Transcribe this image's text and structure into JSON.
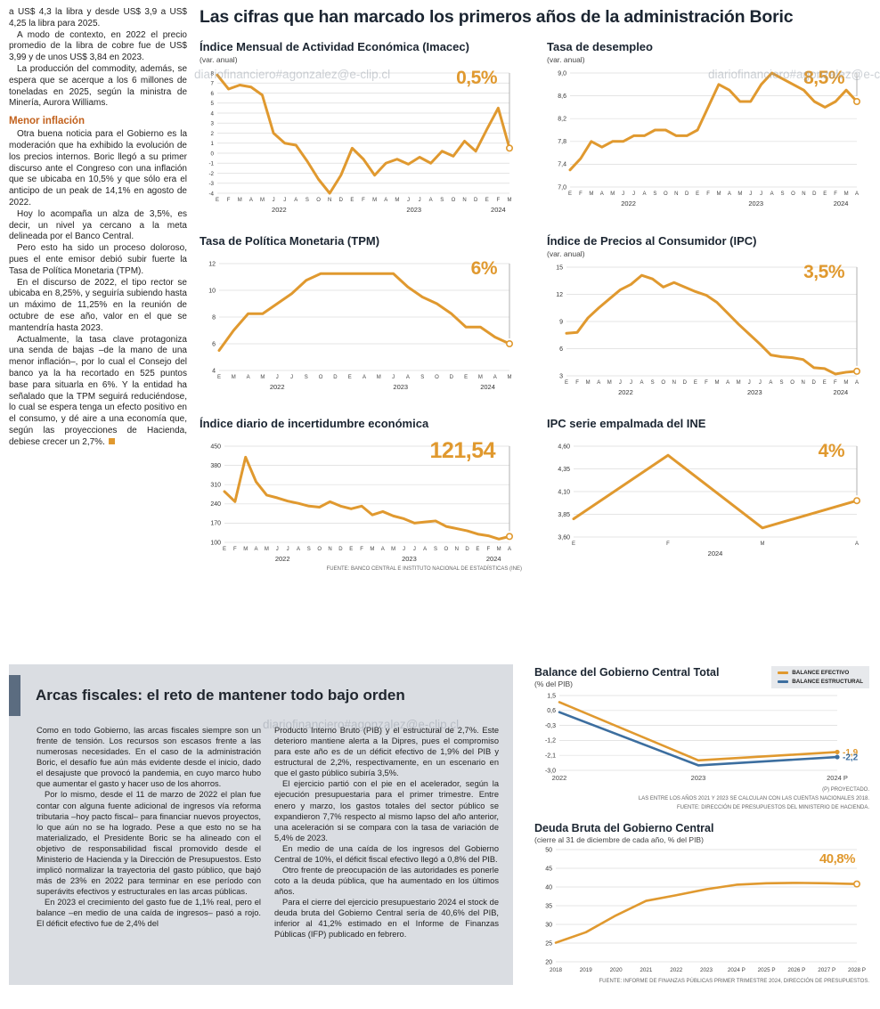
{
  "watermark": "diariofinanciero#agonzalez@e-clip.cl",
  "main_title": "Las cifras que han marcado los primeros años de la administración Boric",
  "left_column": {
    "intro_paragraphs": [
      "a US$ 4,3 la libra y desde US$ 3,9 a US$ 4,25 la libra para 2025.",
      "A modo de contexto, en 2022 el precio promedio de la libra de cobre fue de US$ 3,99 y de unos US$ 3,84 en 2023.",
      "La producción del commodity, además, se espera que se acerque a los 6 millones de toneladas en 2025, según la ministra de Minería, Aurora Williams."
    ],
    "subhead": "Menor inflación",
    "paragraphs": [
      "Otra buena noticia para el Gobierno es la moderación que ha exhibido la evolución de los precios internos. Boric llegó a su primer discurso ante el Congreso con una inflación que se ubicaba en 10,5% y que sólo era el anticipo de un peak de 14,1% en agosto de 2022.",
      "Hoy lo acompaña un alza de 3,5%, es decir, un nivel ya cercano a la meta delineada por el Banco Central.",
      "Pero esto ha sido un proceso doloroso, pues el ente emisor debió subir fuerte la Tasa de Política Monetaria (TPM).",
      "En el discurso de 2022, el tipo rector se ubicaba en 8,25%, y seguiría subiendo hasta un máximo de 11,25% en la reunión de octubre de ese año, valor en el que se mantendría hasta 2023.",
      "Actualmente, la tasa clave protagoniza una senda de bajas –de la mano de una menor inflación–, por lo cual el Consejo del banco ya la ha recortado en 525 puntos base para situarla en 6%. Y la entidad ha señalado que la TPM seguirá reduciéndose, lo cual se espera tenga un efecto positivo en el consumo, y dé aire a una economía que, según las proyecciones de Hacienda, debiese crecer un 2,7%."
    ]
  },
  "fiscal_box": {
    "title": "Arcas fiscales: el reto de mantener todo bajo orden",
    "col1_paragraphs": [
      "Como en todo Gobierno, las arcas fiscales siempre son un frente de tensión. Los recursos son escasos frente a las numerosas necesidades. En el caso de la administración Boric, el desafío fue aún más evidente desde el inicio, dado el desajuste que provocó la pandemia, en cuyo marco hubo que aumentar el gasto y hacer uso de los ahorros.",
      "Por lo mismo, desde el 11 de marzo de 2022 el plan fue contar con alguna fuente adicional de ingresos vía reforma tributaria –hoy pacto fiscal– para financiar nuevos proyectos, lo que aún no se ha logrado. Pese a que esto no se ha materializado, el Presidente Boric se ha alineado con el objetivo de responsabilidad fiscal promovido desde el Ministerio de Hacienda y la Dirección de Presupuestos. Esto implicó normalizar la trayectoria del gasto público, que bajó más de 23% en 2022 para terminar en ese período con superávits efectivos y estructurales en las arcas públicas.",
      "En 2023 el crecimiento del gasto fue de 1,1% real, pero el balance –en medio de una caída de ingresos– pasó a rojo. El déficit efectivo fue de 2,4% del"
    ],
    "col2_paragraphs": [
      "Producto Interno Bruto (PIB) y el estructural de 2,7%. Este deterioro mantiene alerta a la Dipres, pues el compromiso para este año es de un déficit efectivo de 1,9% del PIB y estructural de 2,2%, respectivamente, en un escenario en que el gasto público subiría 3,5%.",
      "El ejercicio partió con el pie en el acelerador, según la ejecución presupuestaria para el primer trimestre. Entre enero y marzo, los gastos totales del sector público se expandieron 7,7% respecto al mismo lapso del año anterior, una aceleración si se compara con la tasa de variación de 5,4% de 2023.",
      "En medio de una caída de los ingresos del Gobierno Central de 10%, el déficit fiscal efectivo llegó a 0,8% del PIB.",
      "Otro frente de preocupación de las autoridades es ponerle coto a la deuda pública, que ha aumentado en los últimos años.",
      "Para el cierre del ejercicio presupuestario 2024 el stock de deuda bruta del Gobierno Central sería de 40,6% del PIB, inferior al 41,2% estimado en el Informe de Finanzas Públicas (IFP) publicado en febrero."
    ]
  },
  "colors": {
    "accent_orange": "#E0992F",
    "accent_blue": "#3C6E9F"
  },
  "chart_data": [
    {
      "id": "imacec",
      "type": "line",
      "title": "Índice Mensual de Actividad Económica (Imacec)",
      "subtitle": "(var. anual)",
      "callout": "0,5%",
      "ylim": [
        -4,
        8
      ],
      "yticks": [
        8,
        7,
        6,
        5,
        4,
        3,
        2,
        1,
        0,
        -1,
        -2,
        -3,
        -4
      ],
      "ytick_labels": [
        "8",
        "7",
        "6",
        "5",
        "4",
        "3",
        "2",
        "1",
        "0",
        "-1",
        "-2",
        "-3",
        "-4"
      ],
      "x_labels": [
        "E",
        "F",
        "M",
        "A",
        "M",
        "J",
        "J",
        "A",
        "S",
        "O",
        "N",
        "D",
        "E",
        "F",
        "M",
        "A",
        "M",
        "J",
        "J",
        "A",
        "S",
        "O",
        "N",
        "D",
        "E",
        "F",
        "M"
      ],
      "years": [
        {
          "label": "2022",
          "from": 0,
          "to": 11
        },
        {
          "label": "2023",
          "from": 12,
          "to": 23
        },
        {
          "label": "2024",
          "from": 24,
          "to": 26
        }
      ],
      "series": [
        {
          "name": "Imacec",
          "color": "#E0992F",
          "values": [
            7.8,
            6.4,
            6.8,
            6.6,
            5.8,
            2.0,
            1.0,
            0.8,
            -0.8,
            -2.6,
            -4.0,
            -2.2,
            0.5,
            -0.6,
            -2.2,
            -1.0,
            -0.6,
            -1.1,
            -0.4,
            -1.0,
            0.2,
            -0.3,
            1.2,
            0.2,
            2.4,
            4.5,
            0.5
          ]
        }
      ],
      "pointer": true,
      "end_dot": true,
      "ml": 20,
      "ytf": 6.2
    },
    {
      "id": "desempleo",
      "type": "line",
      "title": "Tasa de desempleo",
      "subtitle": "(var. anual)",
      "callout": "8,5%",
      "ylim": [
        7.0,
        9.0
      ],
      "yticks": [
        9.0,
        8.6,
        8.2,
        7.8,
        7.4,
        7.0
      ],
      "ytick_labels": [
        "9,0",
        "8,6",
        "8,2",
        "7,8",
        "7,4",
        "7,0"
      ],
      "x_labels": [
        "E",
        "F",
        "M",
        "A",
        "M",
        "J",
        "J",
        "A",
        "S",
        "O",
        "N",
        "D",
        "E",
        "F",
        "M",
        "A",
        "M",
        "J",
        "J",
        "A",
        "S",
        "O",
        "N",
        "D",
        "E",
        "F",
        "M",
        "A"
      ],
      "years": [
        {
          "label": "2022",
          "from": 0,
          "to": 11
        },
        {
          "label": "2023",
          "from": 12,
          "to": 23
        },
        {
          "label": "2024",
          "from": 24,
          "to": 27
        }
      ],
      "series": [
        {
          "name": "Tasa de desempleo",
          "color": "#E0992F",
          "values": [
            7.3,
            7.5,
            7.8,
            7.7,
            7.8,
            7.8,
            7.9,
            7.9,
            8.0,
            8.0,
            7.9,
            7.9,
            8.0,
            8.4,
            8.8,
            8.7,
            8.5,
            8.5,
            8.8,
            9.0,
            8.9,
            8.8,
            8.7,
            8.5,
            8.4,
            8.5,
            8.7,
            8.5
          ]
        }
      ],
      "pointer": true,
      "end_dot": true,
      "ml": 26
    },
    {
      "id": "tpm",
      "type": "line",
      "title": "Tasa de Política Monetaria (TPM)",
      "callout": "6%",
      "ylim": [
        4,
        12
      ],
      "yticks": [
        12,
        10,
        8,
        6,
        4
      ],
      "ytick_labels": [
        "12",
        "10",
        "8",
        "6",
        "4"
      ],
      "x_labels": [
        "E",
        "M",
        "A",
        "M",
        "J",
        "J",
        "S",
        "O",
        "D",
        "E",
        "A",
        "M",
        "J",
        "A",
        "S",
        "O",
        "D",
        "E",
        "M",
        "A",
        "M"
      ],
      "years": [
        {
          "label": "2022",
          "from": 0,
          "to": 8
        },
        {
          "label": "2023",
          "from": 9,
          "to": 16
        },
        {
          "label": "2024",
          "from": 17,
          "to": 20
        }
      ],
      "series": [
        {
          "name": "TPM",
          "color": "#E0992F",
          "values": [
            5.5,
            7.0,
            8.25,
            8.25,
            9.0,
            9.75,
            10.75,
            11.25,
            11.25,
            11.25,
            11.25,
            11.25,
            11.25,
            10.25,
            9.5,
            9.0,
            8.25,
            7.25,
            7.25,
            6.5,
            6.0
          ]
        }
      ],
      "pointer": true,
      "end_dot": true,
      "ml": 22
    },
    {
      "id": "ipc",
      "type": "line",
      "title": "Índice de Precios al Consumidor (IPC)",
      "subtitle": "(var. anual)",
      "callout": "3,5%",
      "ylim": [
        3,
        15
      ],
      "yticks": [
        15,
        12,
        9,
        6,
        3
      ],
      "ytick_labels": [
        "15",
        "12",
        "9",
        "6",
        "3"
      ],
      "x_labels": [
        "E",
        "F",
        "M",
        "A",
        "M",
        "J",
        "J",
        "A",
        "S",
        "O",
        "N",
        "D",
        "E",
        "F",
        "M",
        "A",
        "M",
        "J",
        "J",
        "A",
        "S",
        "O",
        "N",
        "D",
        "E",
        "F",
        "M",
        "A"
      ],
      "years": [
        {
          "label": "2022",
          "from": 0,
          "to": 11
        },
        {
          "label": "2023",
          "from": 12,
          "to": 23
        },
        {
          "label": "2024",
          "from": 24,
          "to": 27
        }
      ],
      "series": [
        {
          "name": "IPC",
          "color": "#E0992F",
          "values": [
            7.7,
            7.8,
            9.4,
            10.5,
            11.5,
            12.5,
            13.1,
            14.1,
            13.7,
            12.8,
            13.3,
            12.8,
            12.3,
            11.9,
            11.1,
            9.9,
            8.7,
            7.6,
            6.5,
            5.3,
            5.1,
            5.0,
            4.8,
            3.9,
            3.8,
            3.2,
            3.4,
            3.5
          ]
        }
      ],
      "pointer": true,
      "end_dot": true,
      "ml": 22
    },
    {
      "id": "incertidumbre",
      "type": "line",
      "title": "Índice diario de incertidumbre económica",
      "callout": "121,54",
      "ylim": [
        100,
        450
      ],
      "yticks": [
        450,
        380,
        310,
        240,
        170,
        100
      ],
      "ytick_labels": [
        "450",
        "380",
        "310",
        "240",
        "170",
        "100"
      ],
      "x_labels": [
        "E",
        "F",
        "M",
        "A",
        "M",
        "J",
        "J",
        "A",
        "S",
        "O",
        "N",
        "D",
        "E",
        "F",
        "M",
        "A",
        "M",
        "J",
        "J",
        "A",
        "S",
        "O",
        "N",
        "D",
        "E",
        "F",
        "M",
        "A"
      ],
      "years": [
        {
          "label": "2022",
          "from": 0,
          "to": 11
        },
        {
          "label": "2023",
          "from": 12,
          "to": 23
        },
        {
          "label": "2024",
          "from": 24,
          "to": 27
        }
      ],
      "series": [
        {
          "name": "Incertidumbre económica",
          "color": "#E0992F",
          "values": [
            285,
            248,
            410,
            320,
            272,
            262,
            250,
            242,
            232,
            228,
            248,
            232,
            222,
            232,
            200,
            212,
            196,
            186,
            170,
            174,
            178,
            158,
            150,
            142,
            130,
            124,
            112,
            121.5
          ]
        }
      ],
      "pointer": true,
      "end_dot": true,
      "ml": 28,
      "source": "FUENTE: BANCO CENTRAL E INSTITUTO NACIONAL DE ESTADÍSTICAS (INE)"
    },
    {
      "id": "ipc_ine",
      "type": "line",
      "title": "IPC serie empalmada del INE",
      "callout": "4%",
      "ylim": [
        3.6,
        4.6
      ],
      "yticks": [
        4.6,
        4.35,
        4.1,
        3.85,
        3.6
      ],
      "ytick_labels": [
        "4,60",
        "4,35",
        "4,10",
        "3,85",
        "3,60"
      ],
      "x_labels": [
        "E",
        "F",
        "M",
        "A"
      ],
      "years": [
        {
          "label": "2024",
          "from": 0,
          "to": 3
        }
      ],
      "series": [
        {
          "name": "IPC serie empalmada",
          "color": "#E0992F",
          "values": [
            3.8,
            4.5,
            3.7,
            4.0
          ]
        }
      ],
      "pointer": true,
      "end_dot": true,
      "ml": 30
    },
    {
      "id": "balance",
      "type": "line",
      "title": "Balance del Gobierno Central Total",
      "subtitle": "(% del PIB)",
      "ylim": [
        -3.0,
        1.5
      ],
      "yticks": [
        1.5,
        0.6,
        -0.3,
        -1.2,
        -2.1,
        -3.0
      ],
      "ytick_labels": [
        "1,5",
        "0,6",
        "-0,3",
        "-1,2",
        "-2,1",
        "-3,0"
      ],
      "x_labels": [
        "2022",
        "2023",
        "2024 P"
      ],
      "series": [
        {
          "name": "BALANCE EFECTIVO",
          "color": "#E0992F",
          "values": [
            1.1,
            -2.4,
            -1.9
          ],
          "end_label": "-1,9",
          "width": 2.6
        },
        {
          "name": "BALANCE ESTRUCTURAL",
          "color": "#3C6E9F",
          "values": [
            0.5,
            -2.7,
            -2.2
          ],
          "end_label": "-2,2",
          "width": 2.6
        }
      ],
      "pointer": false,
      "end_dot": false,
      "ml": 28,
      "mr": 36,
      "xtf": 7.5,
      "notes": [
        "(P) PROYECTADO.",
        "LAS ENTRE LOS AÑOS 2021 Y 2023 SE CALCULAN CON LAS CUENTAS NACIONALES 2018.",
        "FUENTE: DIRECCIÓN DE PRESUPUESTOS DEL MINISTERIO DE HACIENDA."
      ]
    },
    {
      "id": "deuda",
      "type": "line",
      "title": "Deuda Bruta del Gobierno Central",
      "subtitle": "(cierre al 31 de diciembre de cada año, % del PIB)",
      "callout": "40,8%",
      "ylim": [
        20,
        50
      ],
      "yticks": [
        50,
        45,
        40,
        35,
        30,
        25,
        20
      ],
      "ytick_labels": [
        "50",
        "45",
        "40",
        "35",
        "30",
        "25",
        "20"
      ],
      "x_labels": [
        "2018",
        "2019",
        "2020",
        "2021",
        "2022",
        "2023",
        "2024 P",
        "2025 P",
        "2026 P",
        "2027 P",
        "2028 P"
      ],
      "series": [
        {
          "name": "Deuda bruta",
          "color": "#E0992F",
          "values": [
            25.1,
            27.9,
            32.4,
            36.3,
            37.8,
            39.4,
            40.6,
            41.0,
            41.1,
            41.0,
            40.8
          ],
          "width": 2.6
        }
      ],
      "pointer": false,
      "end_dot": true,
      "ml": 24,
      "xtf": 6.3,
      "source": "FUENTE: INFORME DE FINANZAS PÚBLICAS PRIMER TRIMESTRE 2024, DIRECCIÓN DE PRESUPUESTOS."
    }
  ]
}
